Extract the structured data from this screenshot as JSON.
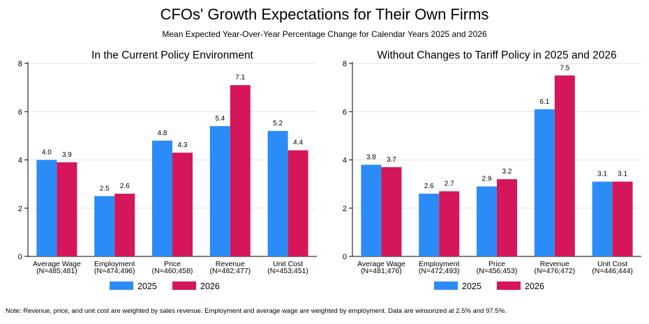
{
  "title": "CFOs' Growth Expectations for Their Own Firms",
  "subtitle": "Mean Expected Year-Over-Year Percentage Change for Calendar Years 2025 and 2026",
  "note": "Note: Revenue, price, and unit cost are weighted by sales revenue. Employment and average wage are weighted by employment. Data are winsorized at 2.5% and 97.5%.",
  "colors": {
    "s2025": "#2b8cf7",
    "s2026": "#d6165a"
  },
  "chart_data": [
    {
      "type": "bar",
      "title": "In the Current Policy Environment",
      "categories": [
        "Average Wage",
        "Employment",
        "Price",
        "Revenue",
        "Unit Cost"
      ],
      "category_notes": [
        "(N=485;481)",
        "(N=474;496)",
        "(N=460;458)",
        "(N=482;477)",
        "(N=453;451)"
      ],
      "series": [
        {
          "name": "2025",
          "values": [
            4.0,
            2.5,
            4.8,
            5.4,
            5.2
          ],
          "labels": [
            "4.0",
            "2.5",
            "4.8",
            "5.4",
            "5.2"
          ]
        },
        {
          "name": "2026",
          "values": [
            3.9,
            2.6,
            4.3,
            7.1,
            4.4
          ],
          "labels": [
            "3.9",
            "2.6",
            "4.3",
            "7.1",
            "4.4"
          ]
        }
      ],
      "ylim": [
        0,
        8
      ],
      "yticks": [
        "0",
        "2",
        "4",
        "6",
        "8"
      ],
      "grid": true,
      "legend": "bottom-center"
    },
    {
      "type": "bar",
      "title": "Without Changes to Tariff Policy in 2025 and 2026",
      "categories": [
        "Average Wage",
        "Employment",
        "Price",
        "Revenue",
        "Unit Cost"
      ],
      "category_notes": [
        "(N=481;476)",
        "(N=472;493)",
        "(N=456;453)",
        "(N=476;472)",
        "(N=446;444)"
      ],
      "series": [
        {
          "name": "2025",
          "values": [
            3.8,
            2.6,
            2.9,
            6.1,
            3.1
          ],
          "labels": [
            "3.8",
            "2.6",
            "2.9",
            "6.1",
            "3.1"
          ]
        },
        {
          "name": "2026",
          "values": [
            3.7,
            2.7,
            3.2,
            7.5,
            3.1
          ],
          "labels": [
            "3.7",
            "2.7",
            "3.2",
            "7.5",
            "3.1"
          ]
        }
      ],
      "ylim": [
        0,
        8
      ],
      "yticks": [
        "0",
        "2",
        "4",
        "6",
        "8"
      ],
      "grid": true,
      "legend": "bottom-center"
    }
  ]
}
